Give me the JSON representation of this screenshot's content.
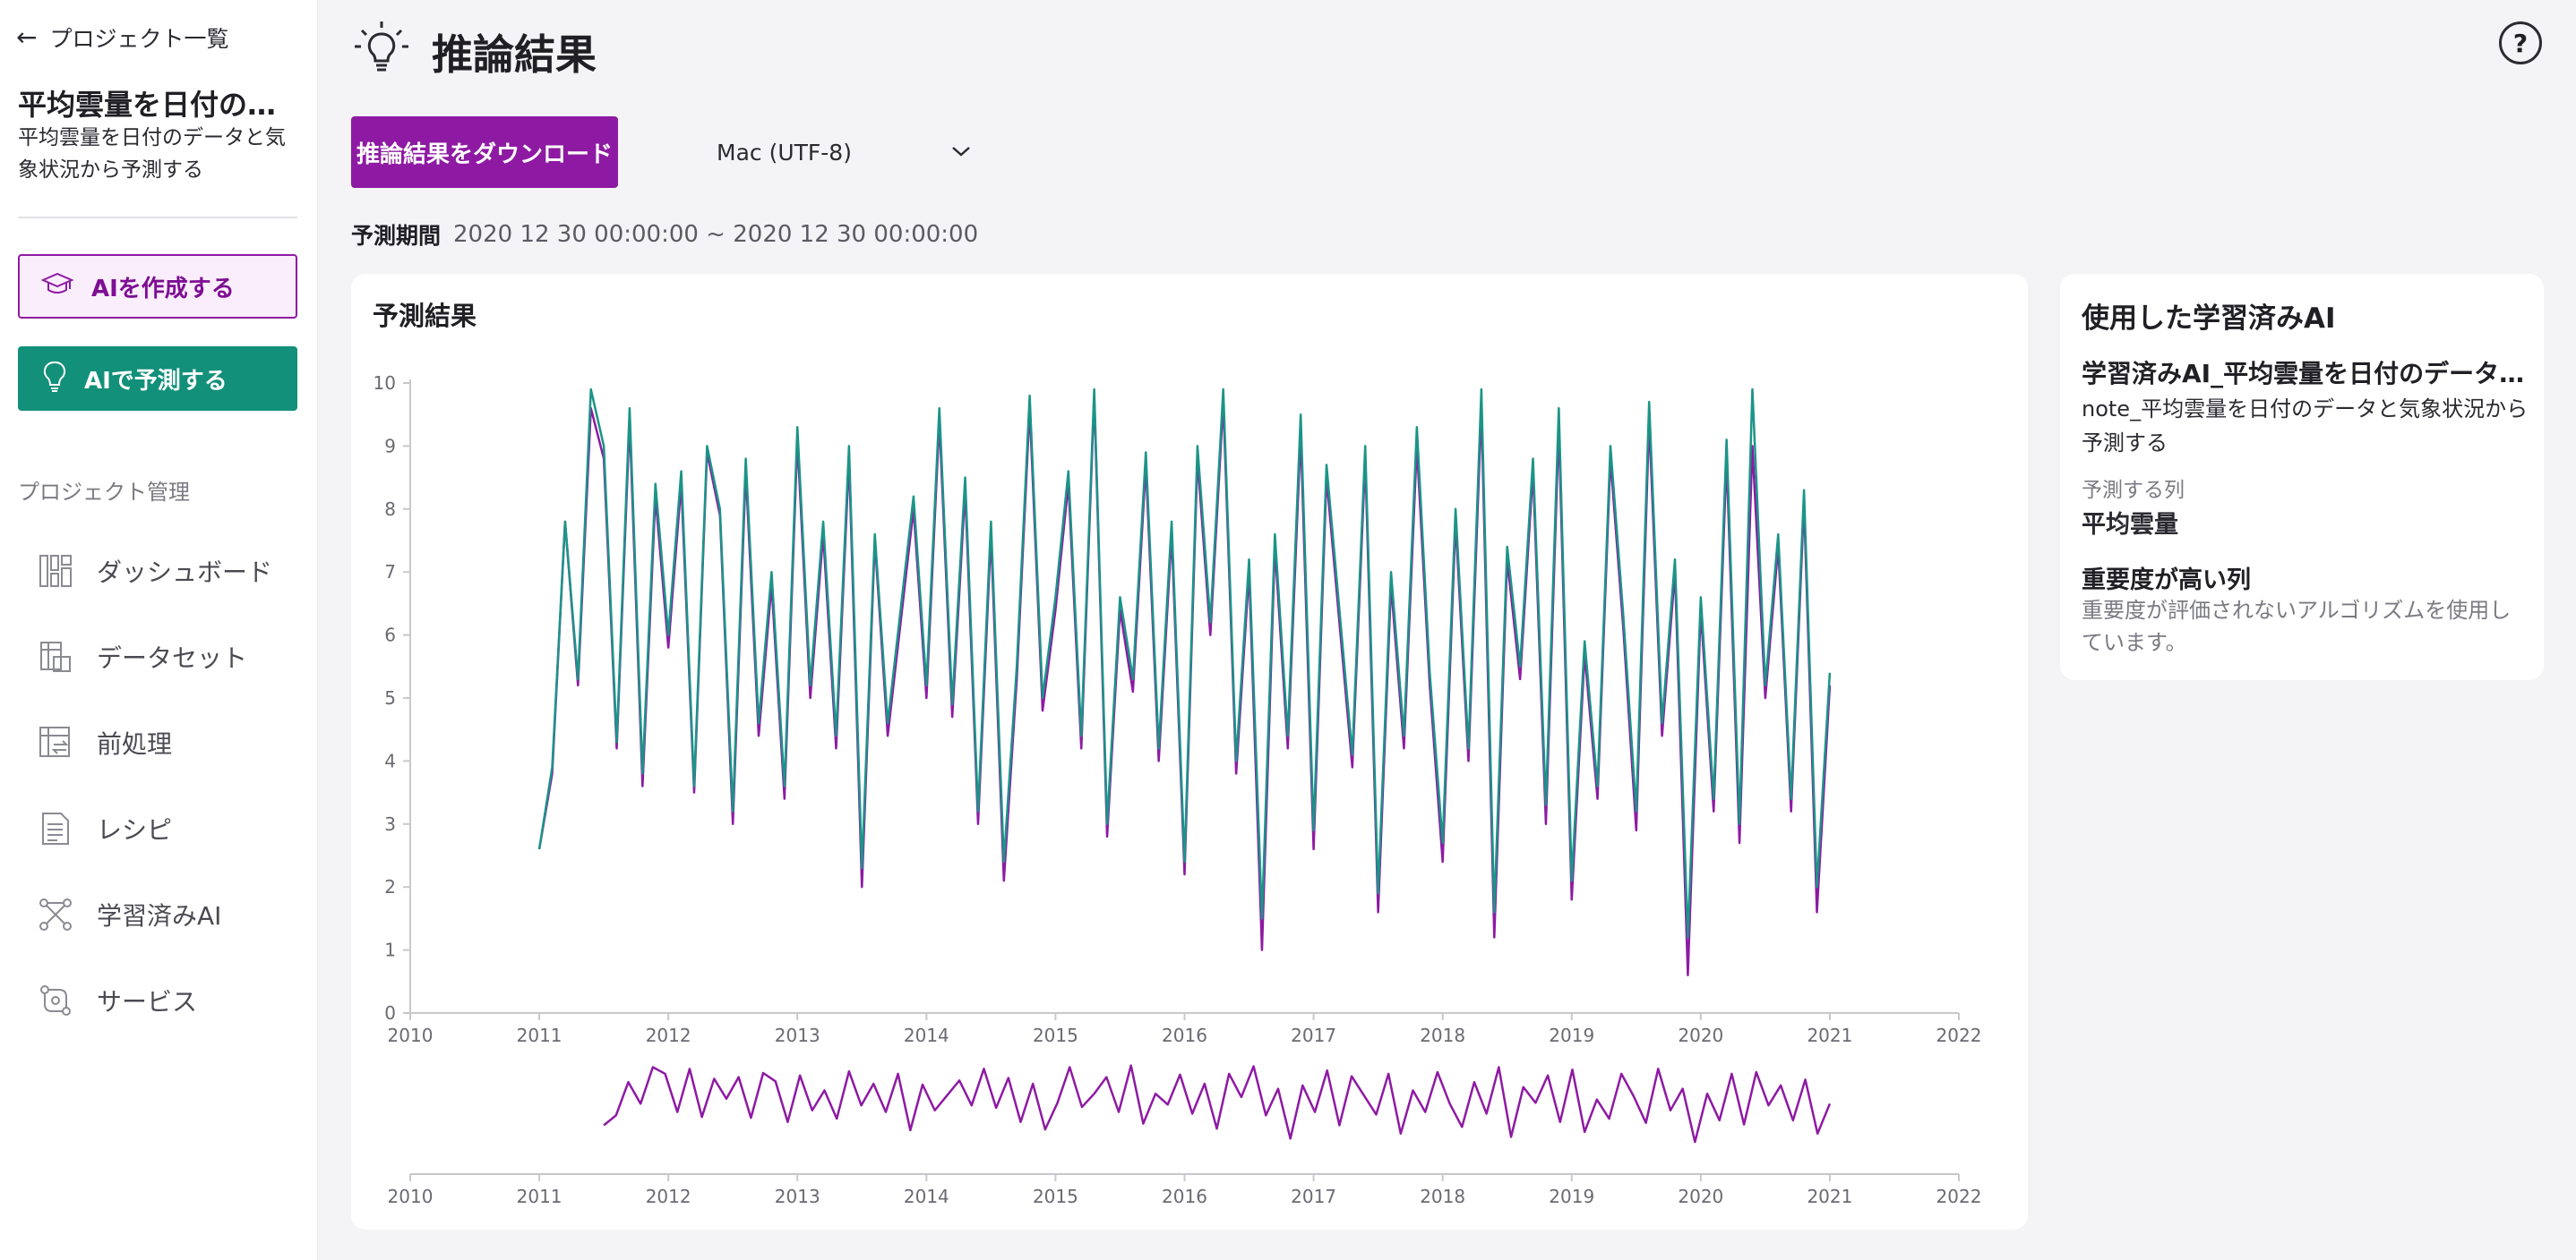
{
  "nav_back": {
    "label": "プロジェクト一覧"
  },
  "project": {
    "title": "平均雲量を日付のデータと気象状況から予測する",
    "description": "平均雲量を日付のデータと気象状況から予測する"
  },
  "actions": {
    "create_ai": "AIを作成する",
    "predict_ai": "AIで予測する"
  },
  "sidebar": {
    "section_label": "プロジェクト管理",
    "items": [
      {
        "label": "ダッシュボード",
        "icon": "dashboard-icon"
      },
      {
        "label": "データセット",
        "icon": "dataset-icon"
      },
      {
        "label": "前処理",
        "icon": "preprocess-icon"
      },
      {
        "label": "レシピ",
        "icon": "recipe-icon"
      },
      {
        "label": "学習済みAI",
        "icon": "trained-ai-icon"
      },
      {
        "label": "サービス",
        "icon": "service-icon"
      }
    ]
  },
  "header": {
    "title": "推論結果",
    "help": "?"
  },
  "toolbar": {
    "download_label": "推論結果をダウンロード",
    "encoding_value": "Mac (UTF-8)"
  },
  "period": {
    "label": "予測期間",
    "value": "2020 12 30 00:00:00 ~ 2020 12 30 00:00:00"
  },
  "chart_card": {
    "title": "予測結果"
  },
  "ai_card": {
    "title": "使用した学習済みAI",
    "name": "学習済みAI_平均雲量を日付のデータと気象状況から予測する",
    "note": "note_平均雲量を日付のデータと気象状況から予測する",
    "target_label": "予測する列",
    "target_value": "平均雲量",
    "importance_label": "重要度が高い列",
    "importance_value": "重要度が評価されないアルゴリズムを使用しています。"
  },
  "colors": {
    "accent_purple": "#8e1aa3",
    "accent_teal": "#129079",
    "actual_line": "#1c9488",
    "predicted_line": "#8e1aa3"
  },
  "chart_data": {
    "type": "line",
    "xlim": [
      2010,
      2022
    ],
    "ylim": [
      0,
      10
    ],
    "x_ticks": [
      "2010",
      "2011",
      "2012",
      "2013",
      "2014",
      "2015",
      "2016",
      "2017",
      "2018",
      "2019",
      "2020",
      "2021",
      "2022"
    ],
    "y_ticks": [
      "0",
      "1",
      "2",
      "3",
      "4",
      "5",
      "6",
      "7",
      "8",
      "9",
      "10"
    ],
    "series": [
      {
        "color": "#8e1aa3",
        "x": [
          2011.0,
          2011.1,
          2011.2,
          2011.3,
          2011.4,
          2011.5,
          2011.6,
          2011.7,
          2011.8,
          2011.9,
          2012.0,
          2012.1,
          2012.2,
          2012.3,
          2012.4,
          2012.5,
          2012.6,
          2012.7,
          2012.8,
          2012.9,
          2013.0,
          2013.1,
          2013.2,
          2013.3,
          2013.4,
          2013.5,
          2013.6,
          2013.7,
          2013.8,
          2013.9,
          2014.0,
          2014.1,
          2014.2,
          2014.3,
          2014.4,
          2014.5,
          2014.6,
          2014.7,
          2014.8,
          2014.9,
          2015.0,
          2015.1,
          2015.2,
          2015.3,
          2015.4,
          2015.5,
          2015.6,
          2015.7,
          2015.8,
          2015.9,
          2016.0,
          2016.1,
          2016.2,
          2016.3,
          2016.4,
          2016.5,
          2016.6,
          2016.7,
          2016.8,
          2016.9,
          2017.0,
          2017.1,
          2017.2,
          2017.3,
          2017.4,
          2017.5,
          2017.6,
          2017.7,
          2017.8,
          2017.9,
          2018.0,
          2018.1,
          2018.2,
          2018.3,
          2018.4,
          2018.5,
          2018.6,
          2018.7,
          2018.8,
          2018.9,
          2019.0,
          2019.1,
          2019.2,
          2019.3,
          2019.4,
          2019.5,
          2019.6,
          2019.7,
          2019.8,
          2019.9,
          2020.0,
          2020.1,
          2020.2,
          2020.3,
          2020.4,
          2020.5,
          2020.6,
          2020.7,
          2020.8,
          2020.9,
          2021.0
        ],
        "values": [
          2.6,
          3.8,
          7.8,
          5.2,
          9.6,
          8.8,
          4.2,
          9.4,
          3.6,
          8.2,
          5.8,
          8.4,
          3.5,
          8.9,
          7.9,
          3.0,
          8.6,
          4.4,
          6.8,
          3.4,
          9.1,
          5.0,
          7.6,
          4.2,
          8.8,
          2.0,
          7.5,
          4.4,
          6.2,
          8.0,
          5.0,
          9.4,
          4.7,
          8.3,
          3.0,
          7.6,
          2.1,
          5.3,
          9.6,
          4.8,
          6.4,
          8.4,
          4.2,
          9.8,
          2.8,
          6.4,
          5.1,
          8.7,
          4.0,
          7.6,
          2.2,
          8.8,
          6.0,
          9.7,
          3.8,
          7.0,
          1.0,
          7.4,
          4.2,
          9.2,
          2.6,
          8.5,
          6.2,
          3.9,
          8.8,
          1.6,
          6.8,
          4.2,
          9.0,
          5.2,
          2.4,
          7.8,
          4.0,
          9.6,
          1.2,
          7.2,
          5.3,
          8.6,
          3.0,
          9.3,
          1.8,
          5.7,
          3.4,
          8.8,
          6.1,
          2.9,
          9.4,
          4.4,
          7.0,
          0.6,
          6.4,
          3.2,
          8.8,
          2.7,
          9.0,
          5.0,
          7.4,
          3.2,
          8.1,
          1.6,
          5.2
        ]
      },
      {
        "color": "#1c9488",
        "x": [
          2011.0,
          2011.1,
          2011.2,
          2011.3,
          2011.4,
          2011.5,
          2011.6,
          2011.7,
          2011.8,
          2011.9,
          2012.0,
          2012.1,
          2012.2,
          2012.3,
          2012.4,
          2012.5,
          2012.6,
          2012.7,
          2012.8,
          2012.9,
          2013.0,
          2013.1,
          2013.2,
          2013.3,
          2013.4,
          2013.5,
          2013.6,
          2013.7,
          2013.8,
          2013.9,
          2014.0,
          2014.1,
          2014.2,
          2014.3,
          2014.4,
          2014.5,
          2014.6,
          2014.7,
          2014.8,
          2014.9,
          2015.0,
          2015.1,
          2015.2,
          2015.3,
          2015.4,
          2015.5,
          2015.6,
          2015.7,
          2015.8,
          2015.9,
          2016.0,
          2016.1,
          2016.2,
          2016.3,
          2016.4,
          2016.5,
          2016.6,
          2016.7,
          2016.8,
          2016.9,
          2017.0,
          2017.1,
          2017.2,
          2017.3,
          2017.4,
          2017.5,
          2017.6,
          2017.7,
          2017.8,
          2017.9,
          2018.0,
          2018.1,
          2018.2,
          2018.3,
          2018.4,
          2018.5,
          2018.6,
          2018.7,
          2018.8,
          2018.9,
          2019.0,
          2019.1,
          2019.2,
          2019.3,
          2019.4,
          2019.5,
          2019.6,
          2019.7,
          2019.8,
          2019.9,
          2020.0,
          2020.1,
          2020.2,
          2020.3,
          2020.4,
          2020.5,
          2020.6,
          2020.7,
          2020.8,
          2020.9,
          2021.0
        ],
        "values": [
          2.6,
          3.9,
          7.8,
          5.3,
          9.9,
          9.0,
          4.3,
          9.6,
          3.8,
          8.4,
          6.0,
          8.6,
          3.6,
          9.0,
          8.0,
          3.2,
          8.8,
          4.6,
          7.0,
          3.6,
          9.3,
          5.2,
          7.8,
          4.4,
          9.0,
          2.3,
          7.6,
          4.6,
          6.4,
          8.2,
          5.2,
          9.6,
          4.9,
          8.5,
          3.2,
          7.8,
          2.4,
          5.5,
          9.8,
          5.0,
          6.6,
          8.6,
          4.4,
          9.9,
          3.0,
          6.6,
          5.3,
          8.9,
          4.2,
          7.8,
          2.4,
          9.0,
          6.2,
          9.9,
          4.0,
          7.2,
          1.5,
          7.6,
          4.4,
          9.5,
          2.9,
          8.7,
          6.4,
          4.1,
          9.0,
          1.9,
          7.0,
          4.4,
          9.3,
          5.4,
          2.7,
          8.0,
          4.2,
          9.9,
          1.6,
          7.4,
          5.5,
          8.8,
          3.3,
          9.6,
          2.1,
          5.9,
          3.6,
          9.0,
          6.3,
          3.2,
          9.7,
          4.6,
          7.2,
          1.2,
          6.6,
          3.4,
          9.1,
          3.0,
          9.9,
          5.2,
          7.6,
          3.4,
          8.3,
          2.0,
          5.4
        ]
      }
    ],
    "navigator": {
      "xlim": [
        2010,
        2022
      ],
      "x_ticks": [
        "2010",
        "2011",
        "2012",
        "2013",
        "2014",
        "2015",
        "2016",
        "2017",
        "2018",
        "2019",
        "2020",
        "2021",
        "2022"
      ]
    }
  }
}
